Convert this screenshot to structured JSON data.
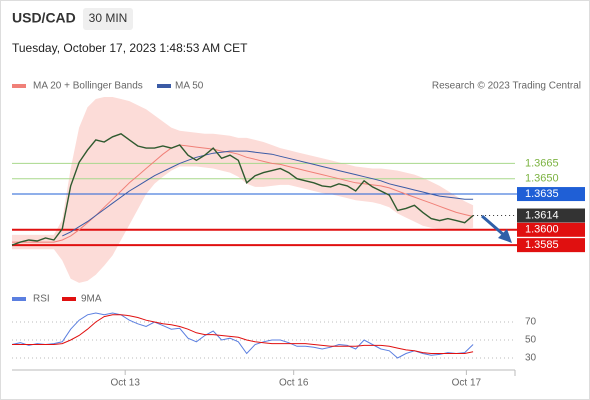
{
  "chart_data": [
    {
      "type": "line",
      "title": "USD/CAD",
      "interval": "30 MIN",
      "subtitle": "Tuesday, October 17, 2023 1:48:53 AM CET",
      "source": "Research © 2023 Trading Central",
      "color": "#2f5a2f",
      "x": [
        0,
        1,
        2,
        3,
        4,
        5,
        6,
        7,
        8,
        9,
        10,
        11,
        12,
        13,
        14,
        15,
        16,
        17,
        18,
        19,
        20,
        21,
        22,
        23,
        24,
        25,
        26,
        27,
        28,
        29,
        30,
        31,
        32,
        33,
        34,
        35,
        36,
        37,
        38,
        39,
        40,
        41,
        42,
        43,
        44,
        45,
        46,
        47,
        48,
        49,
        50,
        51,
        52,
        53,
        54,
        55
      ],
      "values": [
        1.3585,
        1.3588,
        1.359,
        1.3589,
        1.3592,
        1.359,
        1.3601,
        1.3643,
        1.3666,
        1.3678,
        1.3688,
        1.3686,
        1.3691,
        1.3694,
        1.3688,
        1.3682,
        1.368,
        1.368,
        1.3682,
        1.368,
        1.3683,
        1.3673,
        1.3668,
        1.3673,
        1.368,
        1.367,
        1.3673,
        1.3668,
        1.3646,
        1.3653,
        1.3656,
        1.3658,
        1.366,
        1.3656,
        1.365,
        1.3648,
        1.3646,
        1.3643,
        1.3642,
        1.3645,
        1.3643,
        1.3638,
        1.3648,
        1.3642,
        1.3638,
        1.3634,
        1.3619,
        1.3621,
        1.3624,
        1.3617,
        1.3611,
        1.3609,
        1.3611,
        1.3609,
        1.3607,
        1.3614
      ],
      "series": [
        {
          "name": "MA 20 + Bollinger Bands",
          "color": "#f08078",
          "band_color": "#fcdcd8",
          "values": [
            1.3588,
            1.3588,
            1.3588,
            1.3588,
            1.3588,
            1.3588,
            1.359,
            1.3594,
            1.36,
            1.3607,
            1.3614,
            1.3622,
            1.363,
            1.3638,
            1.3646,
            1.3653,
            1.366,
            1.3667,
            1.3674,
            1.368,
            1.3683,
            1.3682,
            1.3681,
            1.368,
            1.3679,
            1.3677,
            1.3676,
            1.3674,
            1.3671,
            1.3669,
            1.3667,
            1.3665,
            1.3664,
            1.3662,
            1.366,
            1.3658,
            1.3656,
            1.3654,
            1.3652,
            1.365,
            1.3648,
            1.3646,
            1.3645,
            1.3644,
            1.3643,
            1.3641,
            1.3638,
            1.3635,
            1.3632,
            1.3629,
            1.3626,
            1.3623,
            1.362,
            1.3617,
            1.3615,
            1.3613
          ],
          "upper": [
            1.3595,
            1.3595,
            1.3595,
            1.3595,
            1.3595,
            1.3595,
            1.361,
            1.366,
            1.37,
            1.372,
            1.3728,
            1.373,
            1.373,
            1.3728,
            1.3726,
            1.3722,
            1.3718,
            1.3712,
            1.3706,
            1.37,
            1.3697,
            1.3696,
            1.3695,
            1.3694,
            1.3694,
            1.3693,
            1.3692,
            1.369,
            1.369,
            1.3688,
            1.3686,
            1.3683,
            1.368,
            1.3678,
            1.3676,
            1.3674,
            1.3672,
            1.367,
            1.3668,
            1.3666,
            1.3664,
            1.3662,
            1.3661,
            1.366,
            1.366,
            1.3659,
            1.3658,
            1.3656,
            1.3654,
            1.3651,
            1.3647,
            1.3643,
            1.3638,
            1.3633,
            1.3628,
            1.3624
          ],
          "lower": [
            1.3581,
            1.3581,
            1.3581,
            1.3581,
            1.3581,
            1.3581,
            1.357,
            1.3552,
            1.3548,
            1.355,
            1.3556,
            1.3565,
            1.3575,
            1.359,
            1.3605,
            1.362,
            1.3635,
            1.3645,
            1.3652,
            1.3658,
            1.3662,
            1.3662,
            1.3662,
            1.3661,
            1.366,
            1.3658,
            1.3656,
            1.3652,
            1.3645,
            1.3642,
            1.3642,
            1.3643,
            1.3644,
            1.3644,
            1.3642,
            1.364,
            1.3638,
            1.3636,
            1.3635,
            1.3633,
            1.3631,
            1.3629,
            1.3628,
            1.3627,
            1.3625,
            1.3622,
            1.3616,
            1.3612,
            1.3608,
            1.3604,
            1.3602,
            1.3601,
            1.36,
            1.36,
            1.3601,
            1.3602
          ]
        },
        {
          "name": "MA 50",
          "color": "#3b5ba5",
          "values": [
            null,
            null,
            null,
            null,
            null,
            null,
            1.3594,
            1.3598,
            1.3603,
            1.3608,
            1.3614,
            1.362,
            1.3626,
            1.3632,
            1.3638,
            1.3643,
            1.3648,
            1.3653,
            1.3657,
            1.3661,
            1.3665,
            1.3668,
            1.3671,
            1.3673,
            1.3675,
            1.3676,
            1.3677,
            1.3677,
            1.3677,
            1.3676,
            1.3675,
            1.3674,
            1.3672,
            1.367,
            1.3668,
            1.3666,
            1.3664,
            1.3662,
            1.366,
            1.3658,
            1.3656,
            1.3654,
            1.3652,
            1.365,
            1.3648,
            1.3645,
            1.3643,
            1.3641,
            1.3639,
            1.3637,
            1.3635,
            1.3633,
            1.3632,
            1.3631,
            1.363,
            1.363
          ]
        }
      ],
      "levels": [
        {
          "value": 1.3665,
          "label": "1.3665",
          "color": "#a8d88c",
          "text_color": "#7cb342",
          "box": false
        },
        {
          "value": 1.365,
          "label": "1.3650",
          "color": "#a8d88c",
          "text_color": "#7cb342",
          "box": false
        },
        {
          "value": 1.3635,
          "label": "1.3635",
          "color": "#1f5fd6",
          "text_color": "#ffffff",
          "box": true
        },
        {
          "value": 1.3614,
          "label": "1.3614",
          "color": "#333333",
          "text_color": "#ffffff",
          "box": true,
          "dotted": true
        },
        {
          "value": 1.36,
          "label": "1.3600",
          "color": "#e01010",
          "text_color": "#ffffff",
          "box": true
        },
        {
          "value": 1.3585,
          "label": "1.3585",
          "color": "#e01010",
          "text_color": "#ffffff",
          "box": true
        }
      ],
      "xlim": [
        0,
        60
      ],
      "ylim": [
        1.3545,
        1.373
      ]
    },
    {
      "type": "line",
      "x": [
        0,
        1,
        2,
        3,
        4,
        5,
        6,
        7,
        8,
        9,
        10,
        11,
        12,
        13,
        14,
        15,
        16,
        17,
        18,
        19,
        20,
        21,
        22,
        23,
        24,
        25,
        26,
        27,
        28,
        29,
        30,
        31,
        32,
        33,
        34,
        35,
        36,
        37,
        38,
        39,
        40,
        41,
        42,
        43,
        44,
        45,
        46,
        47,
        48,
        49,
        50,
        51,
        52,
        53,
        54,
        55
      ],
      "series": [
        {
          "name": "RSI",
          "color": "#5b7fe0",
          "values": [
            45,
            47,
            44,
            46,
            45,
            46,
            48,
            62,
            72,
            78,
            80,
            78,
            80,
            78,
            72,
            68,
            65,
            70,
            66,
            62,
            63,
            52,
            48,
            55,
            60,
            50,
            52,
            48,
            35,
            45,
            48,
            50,
            50,
            47,
            43,
            43,
            42,
            40,
            42,
            45,
            44,
            40,
            50,
            45,
            40,
            38,
            30,
            35,
            38,
            35,
            33,
            34,
            36,
            35,
            36,
            45
          ]
        },
        {
          "name": "9MA",
          "color": "#e01010",
          "values": [
            45,
            45,
            45,
            45,
            45,
            45,
            46,
            50,
            55,
            62,
            70,
            76,
            78,
            78,
            77,
            75,
            72,
            70,
            68,
            67,
            65,
            62,
            58,
            56,
            56,
            55,
            54,
            53,
            50,
            48,
            47,
            46,
            46,
            46,
            46,
            46,
            45,
            44,
            43,
            43,
            43,
            43,
            44,
            44,
            44,
            43,
            41,
            39,
            38,
            36,
            35,
            35,
            35,
            35,
            35,
            37
          ]
        }
      ],
      "xlim": [
        0,
        60
      ],
      "ylim": [
        15,
        85
      ],
      "yticks": [
        30,
        50,
        70
      ],
      "xticks": [
        {
          "value": 13.5,
          "label": "Oct 13"
        },
        {
          "value": 33.6,
          "label": "Oct 16"
        },
        {
          "value": 54.2,
          "label": "Oct 17"
        }
      ],
      "grid": true
    }
  ]
}
